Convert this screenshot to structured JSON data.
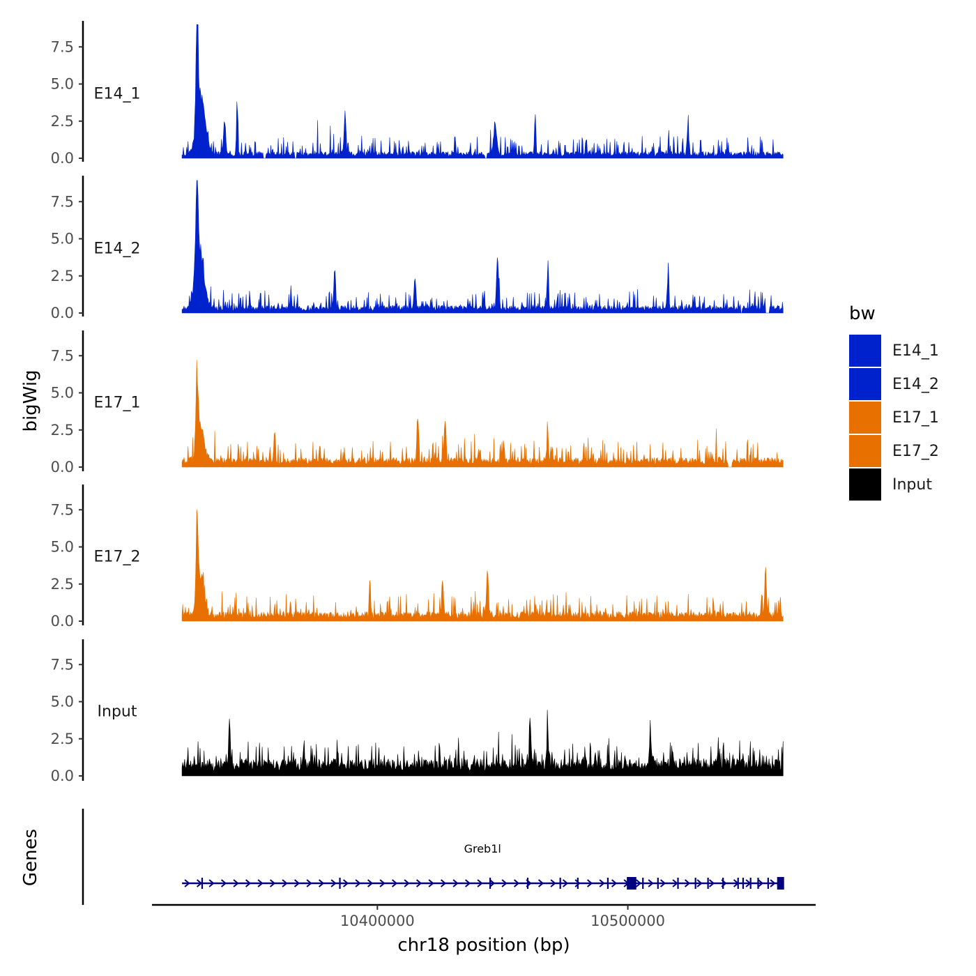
{
  "chart_data": {
    "type": "area",
    "description_free": true,
    "ylabel": "bigWig",
    "genes_label": "Genes",
    "xlabel": "chr18 position (bp)",
    "x_range": [
      10322000,
      10562000
    ],
    "x_axis_limits": [
      10310000,
      10575000
    ],
    "x_ticks": [
      10400000,
      10500000
    ],
    "x_tick_labels": [
      "10400000",
      "10500000"
    ],
    "y_range": [
      0,
      9
    ],
    "y_ticks": [
      0.0,
      2.5,
      5.0,
      7.5
    ],
    "y_tick_labels": [
      "0.0",
      "2.5",
      "5.0",
      "7.5"
    ],
    "legend": {
      "title": "bw",
      "entries": [
        {
          "label": "E14_1",
          "color": "#0022cc"
        },
        {
          "label": "E14_2",
          "color": "#0022cc"
        },
        {
          "label": "E17_1",
          "color": "#e87000"
        },
        {
          "label": "E17_2",
          "color": "#e87000"
        },
        {
          "label": "Input",
          "color": "#000000"
        }
      ]
    },
    "series": [
      {
        "name": "E14_1",
        "color": "#0022cc",
        "baseline": 0.35,
        "noise": 0.9,
        "seed": 11,
        "peaks": [
          {
            "x": 10328000,
            "height": 8.7,
            "width": 600
          },
          {
            "x": 10329500,
            "height": 4.2,
            "width": 2500
          },
          {
            "x": 10339000,
            "height": 2.5,
            "width": 600
          },
          {
            "x": 10344000,
            "height": 3.3,
            "width": 400
          },
          {
            "x": 10387000,
            "height": 2.4,
            "width": 500
          },
          {
            "x": 10447000,
            "height": 2.5,
            "width": 800
          },
          {
            "x": 10463000,
            "height": 2.9,
            "width": 400
          },
          {
            "x": 10524000,
            "height": 2.2,
            "width": 500
          }
        ],
        "gaps": [
          [
            10354500,
            10355500
          ],
          [
            10367000,
            10367800
          ],
          [
            10443000,
            10443700
          ]
        ]
      },
      {
        "name": "E14_2",
        "color": "#0022cc",
        "baseline": 0.4,
        "noise": 0.9,
        "seed": 23,
        "peaks": [
          {
            "x": 10328000,
            "height": 6.3,
            "width": 800
          },
          {
            "x": 10329000,
            "height": 4.0,
            "width": 2500
          },
          {
            "x": 10383000,
            "height": 3.1,
            "width": 500
          },
          {
            "x": 10415000,
            "height": 2.5,
            "width": 500
          },
          {
            "x": 10448000,
            "height": 3.6,
            "width": 600
          },
          {
            "x": 10468000,
            "height": 3.0,
            "width": 400
          },
          {
            "x": 10516000,
            "height": 2.4,
            "width": 500
          }
        ],
        "gaps": [
          [
            10555000,
            10556500
          ],
          [
            10545000,
            10545600
          ]
        ]
      },
      {
        "name": "E17_1",
        "color": "#e87000",
        "baseline": 0.5,
        "noise": 1.1,
        "seed": 37,
        "peaks": [
          {
            "x": 10328000,
            "height": 4.9,
            "width": 700
          },
          {
            "x": 10329500,
            "height": 2.6,
            "width": 2000
          },
          {
            "x": 10359000,
            "height": 2.6,
            "width": 400
          },
          {
            "x": 10416000,
            "height": 3.3,
            "width": 400
          },
          {
            "x": 10427000,
            "height": 3.0,
            "width": 500
          },
          {
            "x": 10468000,
            "height": 2.4,
            "width": 400
          }
        ],
        "gaps": [
          [
            10540000,
            10541500
          ]
        ]
      },
      {
        "name": "E17_2",
        "color": "#e87000",
        "baseline": 0.5,
        "noise": 1.1,
        "seed": 53,
        "peaks": [
          {
            "x": 10328000,
            "height": 6.0,
            "width": 600
          },
          {
            "x": 10329500,
            "height": 2.6,
            "width": 2000
          },
          {
            "x": 10444000,
            "height": 3.9,
            "width": 500
          },
          {
            "x": 10426000,
            "height": 2.8,
            "width": 500
          },
          {
            "x": 10555000,
            "height": 3.2,
            "width": 500
          },
          {
            "x": 10397000,
            "height": 2.4,
            "width": 400
          }
        ],
        "gaps": []
      },
      {
        "name": "Input",
        "color": "#000000",
        "baseline": 0.9,
        "noise": 1.1,
        "seed": 71,
        "peaks": [
          {
            "x": 10341000,
            "height": 3.0,
            "width": 500
          },
          {
            "x": 10468000,
            "height": 3.1,
            "width": 400
          },
          {
            "x": 10461000,
            "height": 2.9,
            "width": 500
          },
          {
            "x": 10509000,
            "height": 2.8,
            "width": 500
          }
        ],
        "gaps": []
      }
    ],
    "gene_track": {
      "color": "#000080",
      "genes": [
        {
          "name": "Greb1l",
          "start": 10322000,
          "end": 10562000,
          "strand": "+"
        }
      ],
      "exons": [
        10330000,
        10385000,
        10445000,
        10460000,
        10473000,
        10480000,
        10492000,
        10500000,
        10501000,
        10502000,
        10506000,
        10512000,
        10520000,
        10527000,
        10532000,
        10538000,
        10544000,
        10546000,
        10549000,
        10552000,
        10556000,
        10560000,
        10561000
      ]
    }
  }
}
